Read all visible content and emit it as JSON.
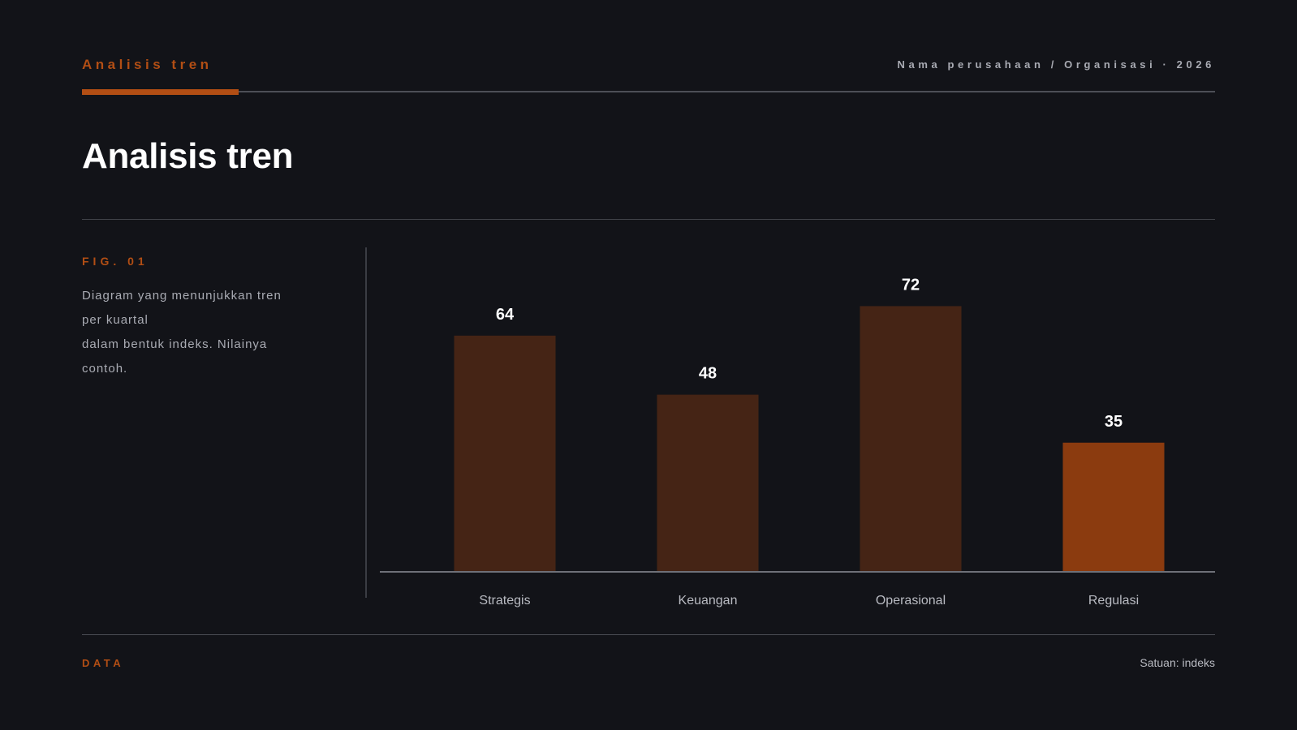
{
  "header": {
    "kicker": "Analisis tren",
    "org": "Nama perusahaan / Organisasi · 2026",
    "title": "Analisis tren"
  },
  "figure": {
    "label": "FIG. 01",
    "description_lines": [
      "Diagram yang menunjukkan tren",
      "per kuartal",
      "dalam bentuk indeks. Nilainya",
      "contoh."
    ]
  },
  "footer": {
    "label": "DATA",
    "unit": "Satuan: indeks"
  },
  "colors": {
    "accent": "#b24e14",
    "bar": "#452415",
    "bar_highlight": "#8b3b0f",
    "background": "#121318"
  },
  "chart_data": {
    "type": "bar",
    "categories": [
      "Strategis",
      "Keuangan",
      "Operasional",
      "Regulasi"
    ],
    "values": [
      64,
      48,
      72,
      35
    ],
    "highlight_index": 3,
    "ylim": [
      0,
      80
    ],
    "grid": false,
    "legend": "none"
  }
}
